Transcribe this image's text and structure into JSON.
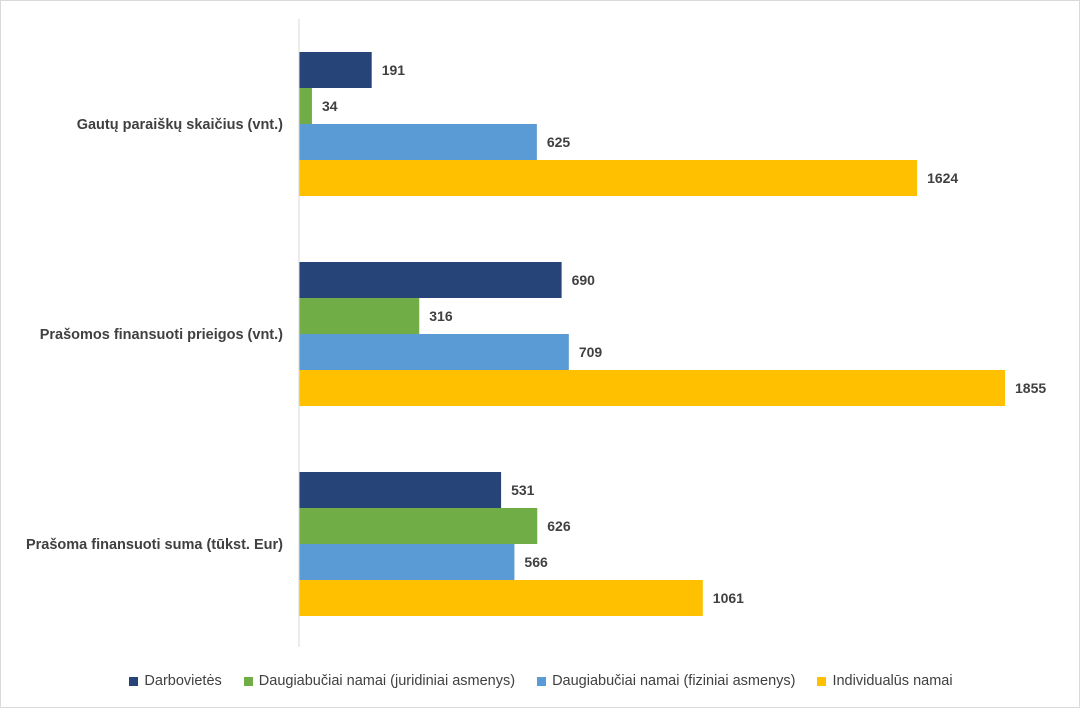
{
  "chart_data": {
    "type": "bar",
    "orientation": "horizontal",
    "categories": [
      "Gautų paraiškų skaičius (vnt.)",
      "Prašomos finansuoti prieigos (vnt.)",
      "Prašoma finansuoti suma (tūkst. Eur)"
    ],
    "series": [
      {
        "name": "Darbovietės",
        "color": "#264478",
        "values": [
          191,
          690,
          531
        ]
      },
      {
        "name": "Daugiabučiai namai (juridiniai asmenys)",
        "color": "#70AD47",
        "values": [
          34,
          316,
          626
        ]
      },
      {
        "name": "Daugiabučiai namai (fiziniai asmenys)",
        "color": "#5B9BD5",
        "values": [
          625,
          709,
          566
        ]
      },
      {
        "name": "Individualūs namai",
        "color": "#FFC000",
        "values": [
          1624,
          1855,
          1061
        ]
      }
    ],
    "xlim": [
      0,
      1855
    ],
    "grid": false,
    "data_labels": true,
    "legend_position": "bottom",
    "title": "",
    "xlabel": "",
    "ylabel": ""
  }
}
